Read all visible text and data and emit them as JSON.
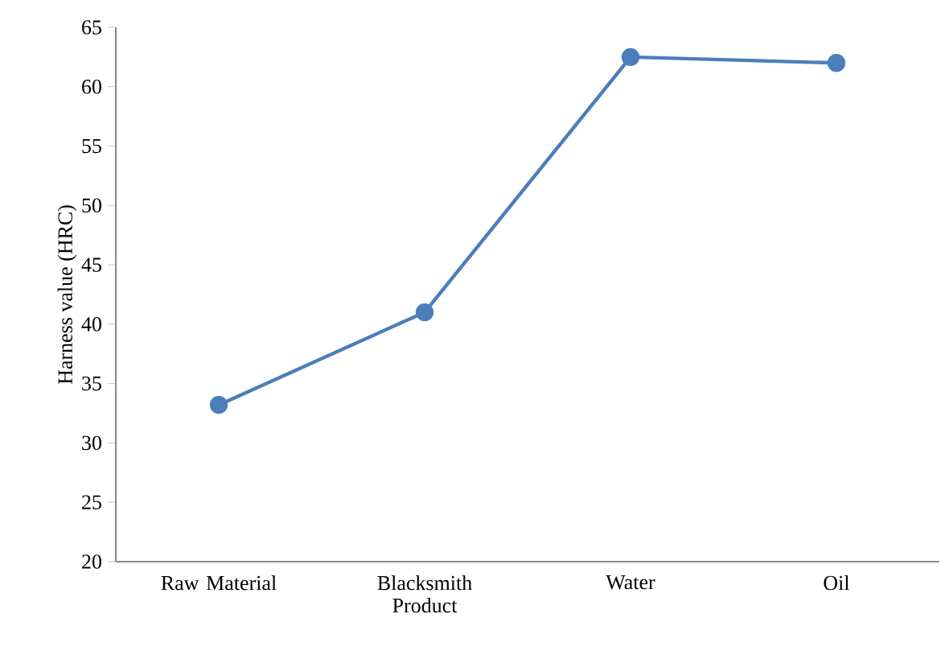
{
  "chart_data": {
    "type": "line",
    "ylabel": "Harness value (HRC)",
    "categories": [
      "Raw Material",
      "Blacksmith Product",
      "Water",
      "Oil"
    ],
    "series": [
      {
        "color": "#4a7ebb",
        "values": [
          33.2,
          41,
          62.5,
          62
        ]
      }
    ],
    "ylim": [
      20,
      65
    ],
    "yticks": [
      20,
      25,
      30,
      35,
      40,
      45,
      50,
      55,
      60,
      65
    ],
    "grid": false,
    "marker": "circle",
    "line_style": "solid"
  }
}
